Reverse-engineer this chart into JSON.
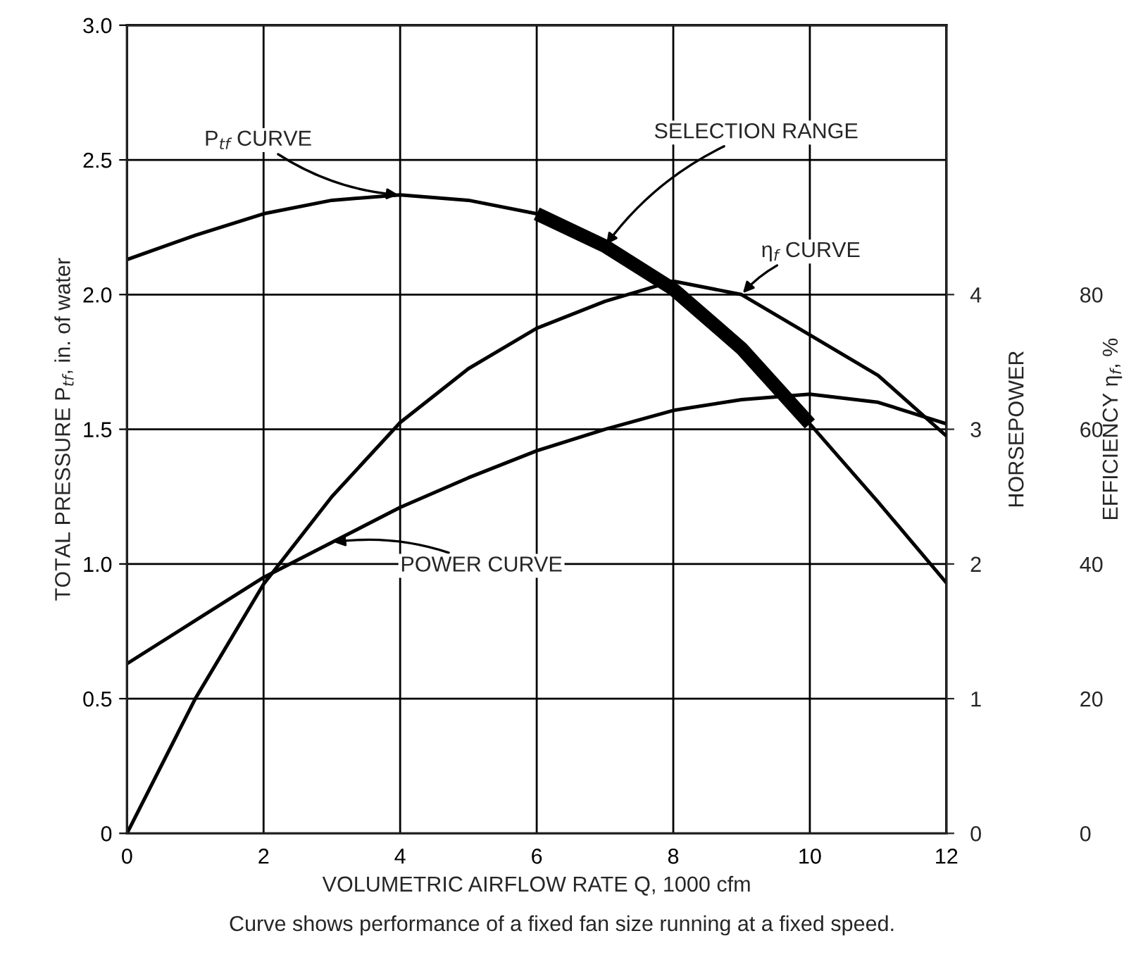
{
  "chart_data": {
    "type": "line",
    "xlabel": "VOLUMETRIC AIRFLOW RATE Q, 1000 cfm",
    "ylabel": "TOTAL PRESSURE P$_{tf}$, in. of water",
    "y2label": "HORSEPOWER",
    "y3label": "EFFICIENCY η$_{f}$, %",
    "xlim": [
      0,
      12
    ],
    "xticks": [
      0,
      2,
      4,
      6,
      8,
      10,
      12
    ],
    "ylim": [
      0,
      3
    ],
    "yticks": [
      0,
      {
        "value": 0.5,
        "label": "0.5"
      },
      {
        "value": 1,
        "label": "1.0"
      },
      {
        "value": 1.5,
        "label": "1.5"
      },
      {
        "value": 2,
        "label": "2.0"
      },
      {
        "value": 2.5,
        "label": "2.5"
      },
      {
        "value": 3,
        "label": "3.0"
      }
    ],
    "y2lim": [
      0,
      6
    ],
    "y2ticks": [
      0,
      1,
      2,
      3,
      4
    ],
    "y3lim": [
      0,
      120
    ],
    "y3ticks": [
      0,
      20,
      40,
      60,
      80
    ],
    "grid": true,
    "series": [
      {
        "name": "P$_{tf}$ CURVE",
        "color": "#000000",
        "x": [
          0,
          1,
          2,
          3,
          4,
          5,
          6,
          7,
          8,
          9,
          10,
          11,
          12
        ],
        "values": [
          2.13,
          2.22,
          2.3,
          2.35,
          2.37,
          2.35,
          2.3,
          2.18,
          2.02,
          1.8,
          1.52,
          1.23,
          0.93
        ]
      },
      {
        "name": "SELECTION RANGE",
        "color": "#000000",
        "x": [
          6,
          7,
          8,
          9,
          10
        ],
        "values": [
          2.3,
          2.18,
          2.02,
          1.8,
          1.52
        ]
      },
      {
        "name": "η$_{f}$ CURVE",
        "color": "#000000",
        "axis": "y3",
        "x": [
          0,
          1,
          2,
          3,
          4,
          5,
          6,
          7,
          8,
          9,
          10,
          11,
          12
        ],
        "values": [
          0,
          20,
          37,
          50,
          61,
          69,
          75,
          79,
          82,
          80,
          74,
          68,
          59
        ]
      },
      {
        "name": "POWER CURVE",
        "color": "#000000",
        "axis": "y2",
        "x": [
          0,
          1,
          2,
          3,
          4,
          5,
          6,
          7,
          8,
          9,
          10,
          11,
          12
        ],
        "values": [
          1.26,
          1.58,
          1.9,
          2.16,
          2.42,
          2.64,
          2.84,
          3.0,
          3.14,
          3.22,
          3.26,
          3.2,
          3.04
        ]
      }
    ],
    "annotations": [
      "Curve shows performance of a fixed fan size running at a fixed speed."
    ]
  }
}
